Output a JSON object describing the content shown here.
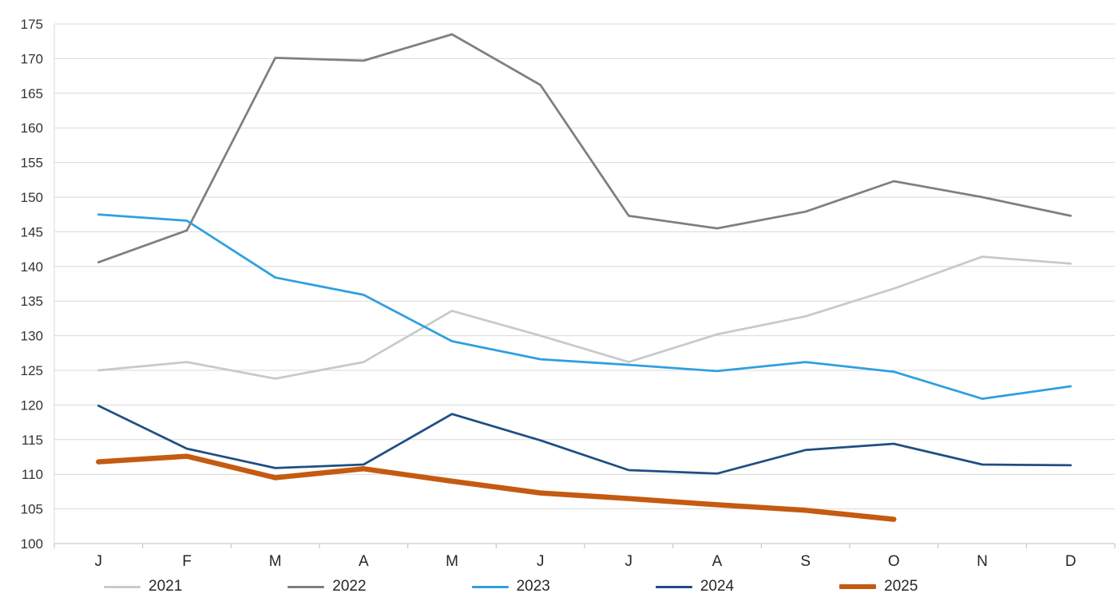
{
  "chart_data": {
    "type": "line",
    "categories": [
      "J",
      "F",
      "M",
      "A",
      "M",
      "J",
      "J",
      "A",
      "S",
      "O",
      "N",
      "D"
    ],
    "series": [
      {
        "name": "2021",
        "color": "#c9c9c9",
        "width": 2.75,
        "values": [
          125.0,
          126.2,
          123.8,
          126.2,
          133.6,
          130.0,
          126.2,
          130.2,
          132.8,
          136.8,
          141.4,
          140.4
        ]
      },
      {
        "name": "2022",
        "color": "#7f7f7f",
        "width": 2.75,
        "values": [
          140.6,
          145.2,
          170.1,
          169.7,
          173.5,
          166.2,
          147.3,
          145.5,
          147.9,
          152.3,
          150.0,
          147.3
        ]
      },
      {
        "name": "2023",
        "color": "#2f9fe0",
        "width": 2.75,
        "values": [
          147.5,
          146.6,
          138.4,
          135.9,
          129.2,
          126.6,
          125.8,
          124.9,
          126.2,
          124.8,
          120.9,
          122.7
        ]
      },
      {
        "name": "2024",
        "color": "#1f4e82",
        "width": 2.75,
        "values": [
          119.9,
          113.7,
          110.9,
          111.4,
          118.7,
          114.9,
          110.6,
          110.1,
          113.5,
          114.4,
          111.4,
          111.3
        ]
      },
      {
        "name": "2025",
        "color": "#c55a11",
        "width": 6.5,
        "values": [
          111.8,
          112.6,
          109.5,
          110.8,
          109.0,
          107.3,
          106.5,
          105.6,
          104.8,
          103.5,
          null,
          null
        ]
      }
    ],
    "yticks": [
      100,
      105,
      110,
      115,
      120,
      125,
      130,
      135,
      140,
      145,
      150,
      155,
      160,
      165,
      170,
      175
    ],
    "ylim": [
      100,
      175
    ],
    "xlabel": "",
    "ylabel": "",
    "grid": true,
    "legend_position": "bottom",
    "colors": {
      "grid": "#d9d9d9",
      "axis": "#bfbfbf",
      "tick_label": "#333333",
      "background": "#ffffff"
    }
  }
}
